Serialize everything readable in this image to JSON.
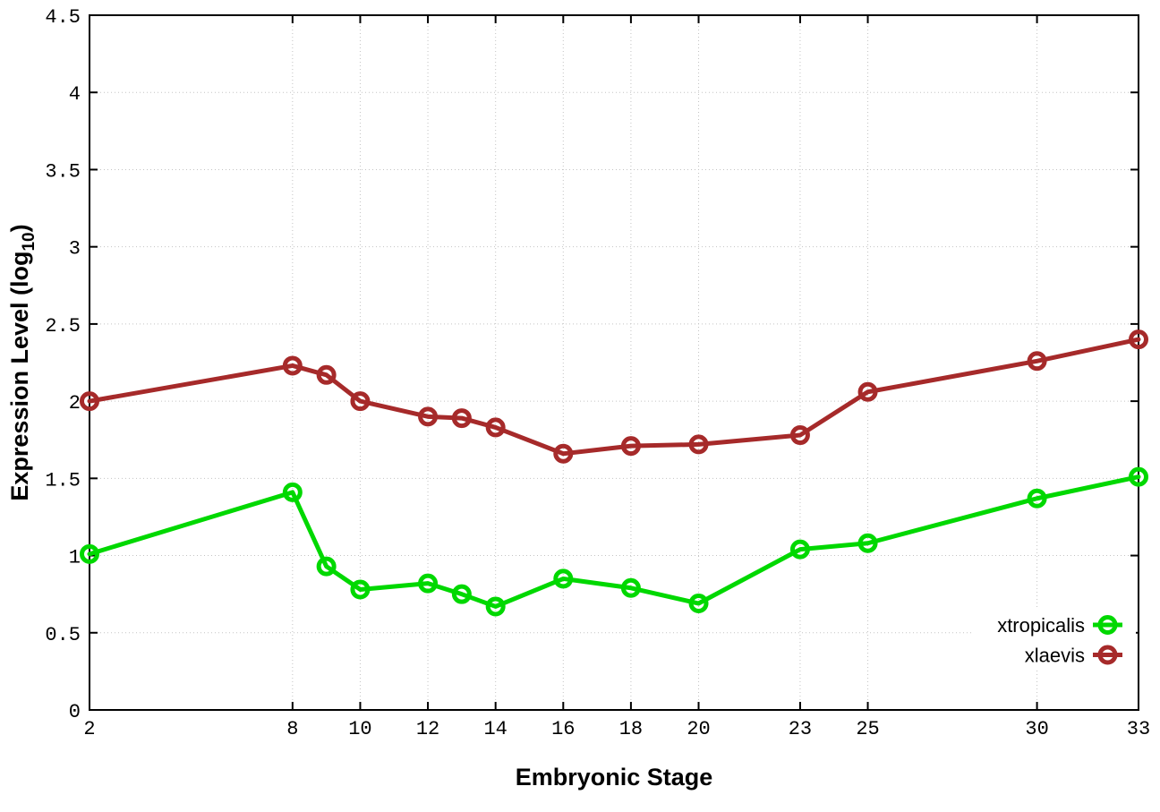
{
  "chart_data": {
    "type": "line",
    "title": "",
    "xlabel": "Embryonic Stage",
    "ylabel": {
      "full": "Expression Level (log10)",
      "main": "Expression Level (log",
      "sub": "10",
      "end": ")"
    },
    "x": [
      2,
      8,
      9,
      10,
      12,
      13,
      14,
      16,
      18,
      20,
      23,
      25,
      30,
      33
    ],
    "series": [
      {
        "name": "xtropicalis",
        "color": "#00d800",
        "values": [
          1.01,
          1.41,
          0.93,
          0.78,
          0.82,
          0.75,
          0.67,
          0.85,
          0.79,
          0.69,
          1.04,
          1.08,
          1.37,
          1.51
        ]
      },
      {
        "name": "xlaevis",
        "color": "#a62a2a",
        "values": [
          2.0,
          2.23,
          2.17,
          2.0,
          1.9,
          1.89,
          1.83,
          1.66,
          1.71,
          1.72,
          1.78,
          2.06,
          2.26,
          2.4
        ]
      }
    ],
    "xlim": [
      2,
      33
    ],
    "ylim": [
      0,
      4.5
    ],
    "xticks": [
      2,
      8,
      10,
      12,
      14,
      16,
      18,
      20,
      23,
      25,
      30,
      33
    ],
    "xtick_labels": [
      "2",
      "8",
      "10",
      "12",
      "14",
      "16",
      "18",
      "20",
      "23",
      "25",
      "30",
      "33"
    ],
    "yticks": [
      0,
      0.5,
      1,
      1.5,
      2,
      2.5,
      3,
      3.5,
      4,
      4.5
    ],
    "ytick_labels": [
      "0",
      "0.5",
      "1",
      "1.5",
      "2",
      "2.5",
      "3",
      "3.5",
      "4",
      "4.5"
    ],
    "grid": true,
    "marker": "open-circle",
    "legend": {
      "position": "inside-bottom-right",
      "entries": [
        "xtropicalis",
        "xlaevis"
      ]
    }
  },
  "colors": {
    "background": "#ffffff",
    "border": "#000000",
    "grid": "#c3c3c3",
    "text": "#000000"
  }
}
